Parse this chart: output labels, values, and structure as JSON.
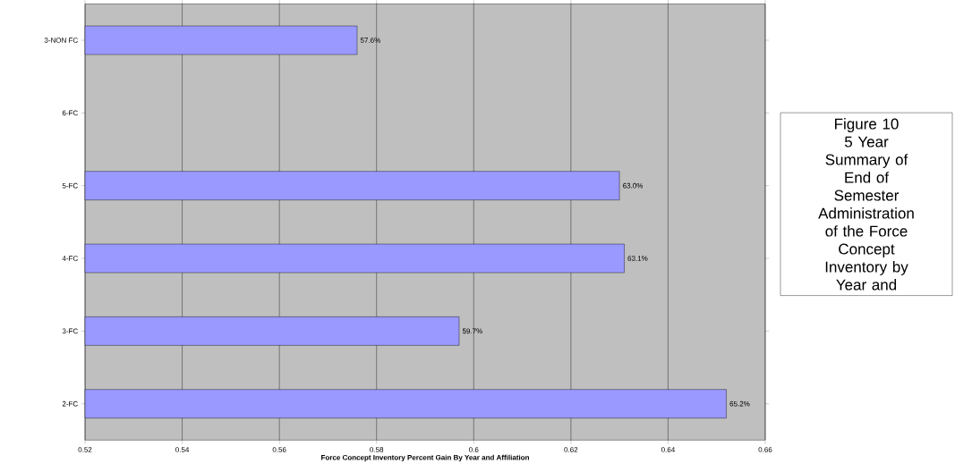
{
  "chart_data": {
    "type": "bar",
    "orientation": "horizontal",
    "categories": [
      "3-NON FC",
      "6-FC",
      "5-FC",
      "4-FC",
      "3-FC",
      "2-FC"
    ],
    "values": [
      0.576,
      null,
      0.63,
      0.631,
      0.597,
      0.652
    ],
    "value_labels": [
      "57.6%",
      null,
      "63.0%",
      "63.1%",
      "59.7%",
      "65.2%"
    ],
    "color": "#9999ff",
    "xlabel": "Force Concept Inventory Percent Gain By Year and Affiliation",
    "annotations": [
      "Figure 10\n5 Year\nSummary of\nEnd of\nSemester\nAdministration\nof the Force\nConcept\nInventory by\nYear and"
    ],
    "xlim": [
      0.52,
      0.66
    ],
    "xticks": [
      0.52,
      0.54,
      0.56,
      0.58,
      0.6,
      0.62,
      0.64,
      0.66
    ],
    "grid": "x"
  }
}
